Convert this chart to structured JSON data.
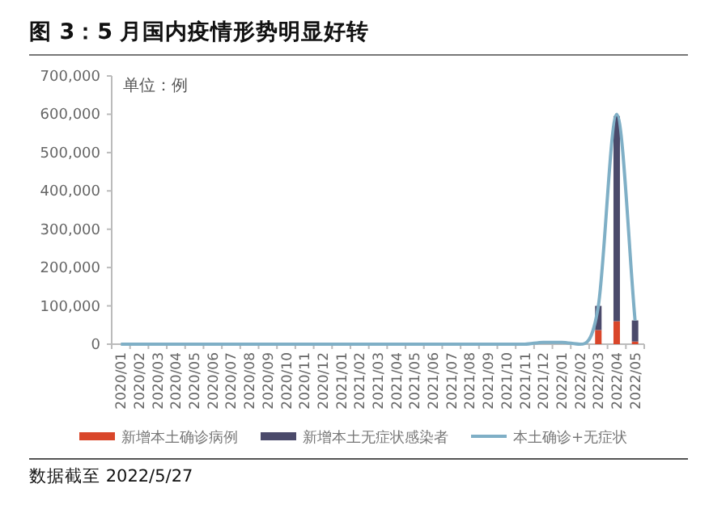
{
  "chart_data": {
    "type": "bar",
    "title": "图 3：5 月国内疫情形势明显好转",
    "categories": [
      "2020/01",
      "2020/02",
      "2020/03",
      "2020/04",
      "2020/05",
      "2020/06",
      "2020/07",
      "2020/08",
      "2020/09",
      "2020/10",
      "2020/11",
      "2020/12",
      "2021/01",
      "2021/02",
      "2021/03",
      "2021/04",
      "2021/05",
      "2021/06",
      "2021/07",
      "2021/08",
      "2021/09",
      "2021/10",
      "2021/11",
      "2021/12",
      "2022/01",
      "2022/02",
      "2022/03",
      "2022/04",
      "2022/05"
    ],
    "stacked": true,
    "series": [
      {
        "name": "新增本土确诊病例",
        "color": "#d9462a",
        "values": [
          0,
          0,
          0,
          0,
          0,
          0,
          0,
          0,
          0,
          0,
          0,
          0,
          0,
          0,
          0,
          0,
          0,
          0,
          0,
          0,
          0,
          0,
          0,
          0,
          0,
          0,
          37000,
          60000,
          7000
        ]
      },
      {
        "name": "新增本土无症状感染者",
        "color": "#4b4a6b",
        "values": [
          0,
          0,
          0,
          0,
          0,
          0,
          0,
          0,
          0,
          0,
          0,
          0,
          0,
          0,
          0,
          0,
          0,
          0,
          0,
          0,
          0,
          0,
          0,
          0,
          0,
          0,
          63000,
          535000,
          55000
        ]
      },
      {
        "name": "本土确诊+无症状",
        "type": "line",
        "color": "#7fafc6",
        "values": [
          0,
          0,
          0,
          0,
          0,
          0,
          0,
          0,
          0,
          0,
          0,
          0,
          0,
          0,
          0,
          0,
          0,
          0,
          0,
          0,
          0,
          0,
          0,
          5000,
          5000,
          0,
          100000,
          600000,
          62000
        ]
      }
    ],
    "ylim": [
      0,
      700000
    ],
    "yticks": [
      0,
      {
        "value": 100000,
        "label": "100,000"
      },
      {
        "value": 200000,
        "label": "200,000"
      },
      {
        "value": 300000,
        "label": "300,000"
      },
      {
        "value": 400000,
        "label": "400,000"
      },
      {
        "value": 500000,
        "label": "500,000"
      },
      {
        "value": 600000,
        "label": "600,000"
      },
      {
        "value": 700000,
        "label": "700,000"
      }
    ],
    "grid": false,
    "legend": "bottom",
    "annotations": [
      "单位：例",
      "数据截至 2022/5/27"
    ]
  }
}
